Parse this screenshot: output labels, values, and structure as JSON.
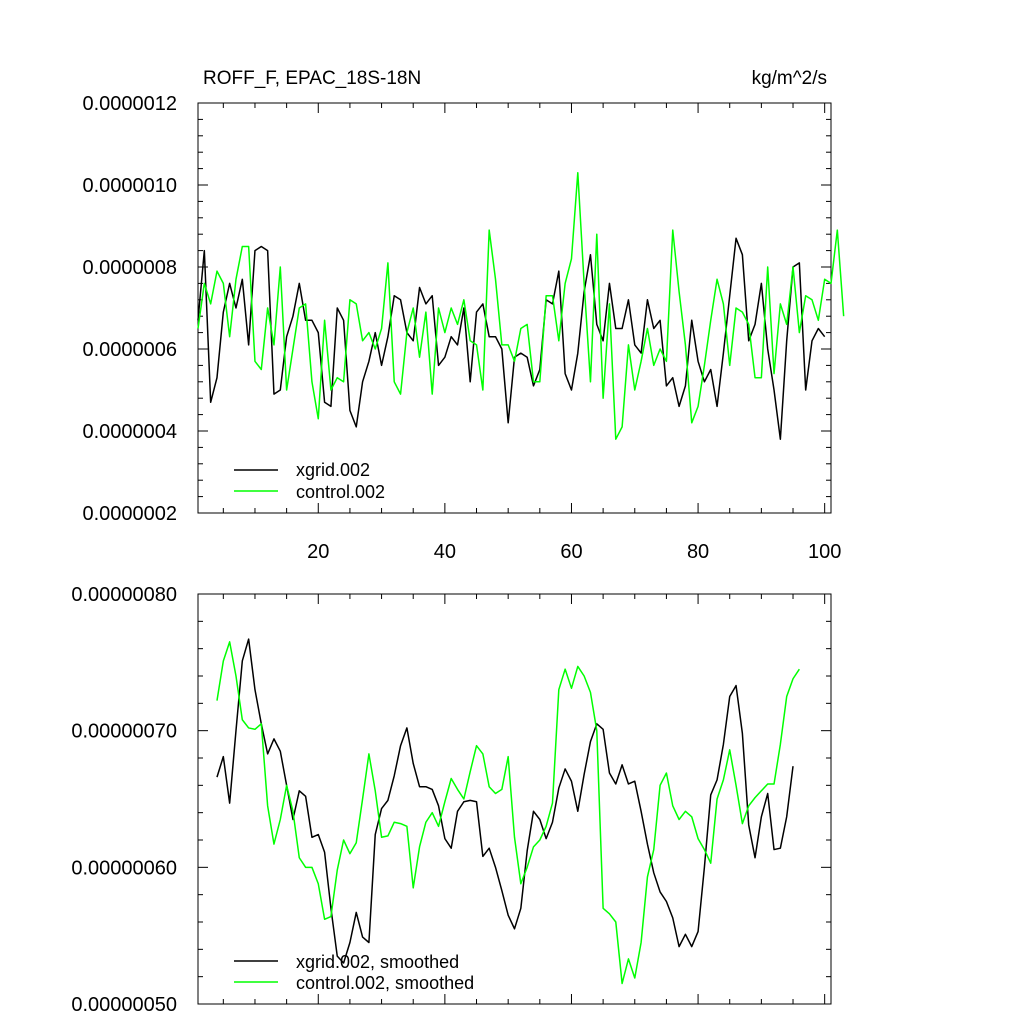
{
  "chart_data": [
    {
      "type": "line",
      "title": "ROFF_F, EPAC_18S-18N",
      "units_label": "kg/m^2/s",
      "ylim": [
        2e-07,
        1.2e-06
      ],
      "xlim": [
        1,
        101
      ],
      "yticks": [
        2e-07,
        4e-07,
        6e-07,
        8e-07,
        1e-06,
        1.2e-06
      ],
      "ytick_labels": [
        "0.0000002",
        "0.0000004",
        "0.0000006",
        "0.0000008",
        "0.0000010",
        "0.0000012"
      ],
      "xticks": [
        20,
        40,
        60,
        80,
        100
      ],
      "xtick_labels": [
        "20",
        "40",
        "60",
        "80",
        "100"
      ],
      "show_xtick_labels": true,
      "legend_position": "bottom-left",
      "series": [
        {
          "name": "xgrid.002",
          "color": "#000000",
          "x_start": 1,
          "values": [
            0.67,
            0.84,
            0.47,
            0.53,
            0.69,
            0.76,
            0.7,
            0.77,
            0.61,
            0.84,
            0.85,
            0.84,
            0.49,
            0.5,
            0.63,
            0.68,
            0.76,
            0.67,
            0.67,
            0.64,
            0.47,
            0.46,
            0.7,
            0.67,
            0.45,
            0.41,
            0.52,
            0.57,
            0.64,
            0.56,
            0.63,
            0.73,
            0.72,
            0.64,
            0.62,
            0.75,
            0.71,
            0.73,
            0.56,
            0.58,
            0.63,
            0.61,
            0.7,
            0.52,
            0.69,
            0.71,
            0.63,
            0.63,
            0.6,
            0.42,
            0.58,
            0.59,
            0.58,
            0.51,
            0.55,
            0.72,
            0.71,
            0.79,
            0.54,
            0.5,
            0.59,
            0.74,
            0.83,
            0.66,
            0.62,
            0.76,
            0.65,
            0.65,
            0.72,
            0.61,
            0.59,
            0.72,
            0.65,
            0.67,
            0.51,
            0.53,
            0.46,
            0.51,
            0.67,
            0.57,
            0.52,
            0.55,
            0.46,
            0.59,
            0.73,
            0.87,
            0.83,
            0.62,
            0.66,
            0.76,
            0.6,
            0.5,
            0.38,
            0.62,
            0.8,
            0.81,
            0.5,
            0.62,
            0.65,
            0.63
          ]
        },
        {
          "name": "control.002",
          "color": "#00ff00",
          "x_start": 1,
          "values": [
            0.65,
            0.76,
            0.71,
            0.79,
            0.76,
            0.63,
            0.77,
            0.85,
            0.85,
            0.57,
            0.55,
            0.7,
            0.61,
            0.8,
            0.5,
            0.6,
            0.7,
            0.71,
            0.52,
            0.43,
            0.67,
            0.5,
            0.53,
            0.52,
            0.72,
            0.71,
            0.62,
            0.64,
            0.6,
            0.65,
            0.81,
            0.52,
            0.49,
            0.64,
            0.7,
            0.58,
            0.69,
            0.49,
            0.7,
            0.64,
            0.7,
            0.66,
            0.72,
            0.62,
            0.61,
            0.5,
            0.89,
            0.77,
            0.61,
            0.61,
            0.57,
            0.65,
            0.66,
            0.52,
            0.52,
            0.73,
            0.73,
            0.62,
            0.76,
            0.82,
            1.03,
            0.76,
            0.52,
            0.88,
            0.48,
            0.71,
            0.38,
            0.41,
            0.61,
            0.5,
            0.57,
            0.65,
            0.56,
            0.6,
            0.57,
            0.89,
            0.74,
            0.61,
            0.42,
            0.46,
            0.56,
            0.67,
            0.77,
            0.71,
            0.56,
            0.7,
            0.69,
            0.66,
            0.53,
            0.53,
            0.8,
            0.54,
            0.71,
            0.66,
            0.8,
            0.64,
            0.73,
            0.72,
            0.67,
            0.77,
            0.76,
            0.89,
            0.68
          ]
        }
      ]
    },
    {
      "type": "line",
      "title": "",
      "units_label": "",
      "ylim": [
        5e-07,
        8e-07
      ],
      "xlim": [
        1,
        101
      ],
      "yticks": [
        5e-07,
        6e-07,
        7e-07,
        8e-07
      ],
      "ytick_labels": [
        "0.00000050",
        "0.00000060",
        "0.00000070",
        "0.00000080"
      ],
      "xticks": [
        20,
        40,
        60,
        80,
        100
      ],
      "xtick_labels": [
        "20",
        "40",
        "60",
        "80",
        "100"
      ],
      "show_xtick_labels": false,
      "legend_position": "bottom-left",
      "series": [
        {
          "name": "xgrid.002, smoothed",
          "color": "#000000",
          "x_start": 4,
          "values": [
            0.666,
            0.681,
            0.647,
            0.7,
            0.751,
            0.767,
            0.73,
            0.705,
            0.683,
            0.694,
            0.685,
            0.66,
            0.635,
            0.656,
            0.652,
            0.622,
            0.624,
            0.611,
            0.57,
            0.535,
            0.53,
            0.545,
            0.567,
            0.549,
            0.545,
            0.624,
            0.643,
            0.649,
            0.667,
            0.689,
            0.702,
            0.676,
            0.659,
            0.659,
            0.657,
            0.645,
            0.621,
            0.614,
            0.641,
            0.648,
            0.649,
            0.648,
            0.608,
            0.614,
            0.6,
            0.583,
            0.565,
            0.555,
            0.57,
            0.612,
            0.641,
            0.635,
            0.621,
            0.633,
            0.658,
            0.672,
            0.663,
            0.641,
            0.668,
            0.692,
            0.705,
            0.701,
            0.669,
            0.661,
            0.675,
            0.661,
            0.663,
            0.641,
            0.617,
            0.596,
            0.582,
            0.575,
            0.563,
            0.542,
            0.551,
            0.542,
            0.553,
            0.6,
            0.653,
            0.664,
            0.69,
            0.725,
            0.733,
            0.698,
            0.631,
            0.607,
            0.637,
            0.654,
            0.613,
            0.614,
            0.637,
            0.674
          ]
        },
        {
          "name": "control.002, smoothed",
          "color": "#00ff00",
          "x_start": 4,
          "values": [
            0.722,
            0.751,
            0.765,
            0.74,
            0.708,
            0.702,
            0.701,
            0.705,
            0.645,
            0.617,
            0.635,
            0.66,
            0.641,
            0.607,
            0.6,
            0.6,
            0.588,
            0.562,
            0.564,
            0.598,
            0.62,
            0.61,
            0.618,
            0.65,
            0.683,
            0.656,
            0.622,
            0.623,
            0.633,
            0.632,
            0.63,
            0.585,
            0.615,
            0.633,
            0.64,
            0.63,
            0.648,
            0.665,
            0.657,
            0.65,
            0.67,
            0.689,
            0.683,
            0.659,
            0.654,
            0.657,
            0.681,
            0.622,
            0.588,
            0.6,
            0.615,
            0.62,
            0.63,
            0.647,
            0.73,
            0.745,
            0.731,
            0.747,
            0.74,
            0.728,
            0.7,
            0.57,
            0.566,
            0.56,
            0.515,
            0.533,
            0.519,
            0.545,
            0.593,
            0.613,
            0.66,
            0.669,
            0.645,
            0.635,
            0.641,
            0.637,
            0.621,
            0.613,
            0.603,
            0.65,
            0.664,
            0.686,
            0.66,
            0.632,
            0.645,
            0.651,
            0.656,
            0.661,
            0.661,
            0.69,
            0.725,
            0.738,
            0.745
          ]
        }
      ]
    }
  ]
}
